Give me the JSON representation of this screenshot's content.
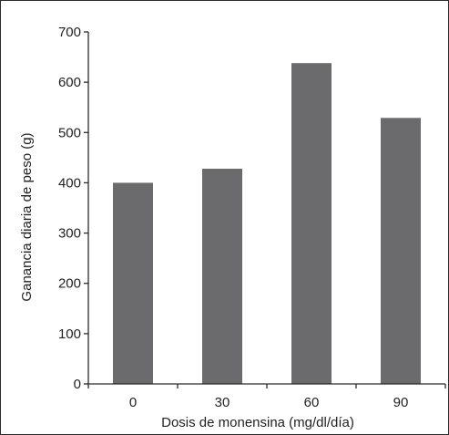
{
  "chart_data": {
    "type": "bar",
    "title": "",
    "categories": [
      "0",
      "30",
      "60",
      "90"
    ],
    "values": [
      400,
      428,
      638,
      529
    ],
    "xlabel": "Dosis de monensina (mg/dl/día)",
    "ylabel": "Ganancia diaria de peso (g)",
    "ylim": [
      0,
      700
    ],
    "yticks": [
      "0",
      "100",
      "200",
      "300",
      "400",
      "500",
      "600",
      "700"
    ],
    "grid": false,
    "legend": "none",
    "bar_color": "#6b6b6e",
    "axis_color": "#2b2b2b"
  }
}
